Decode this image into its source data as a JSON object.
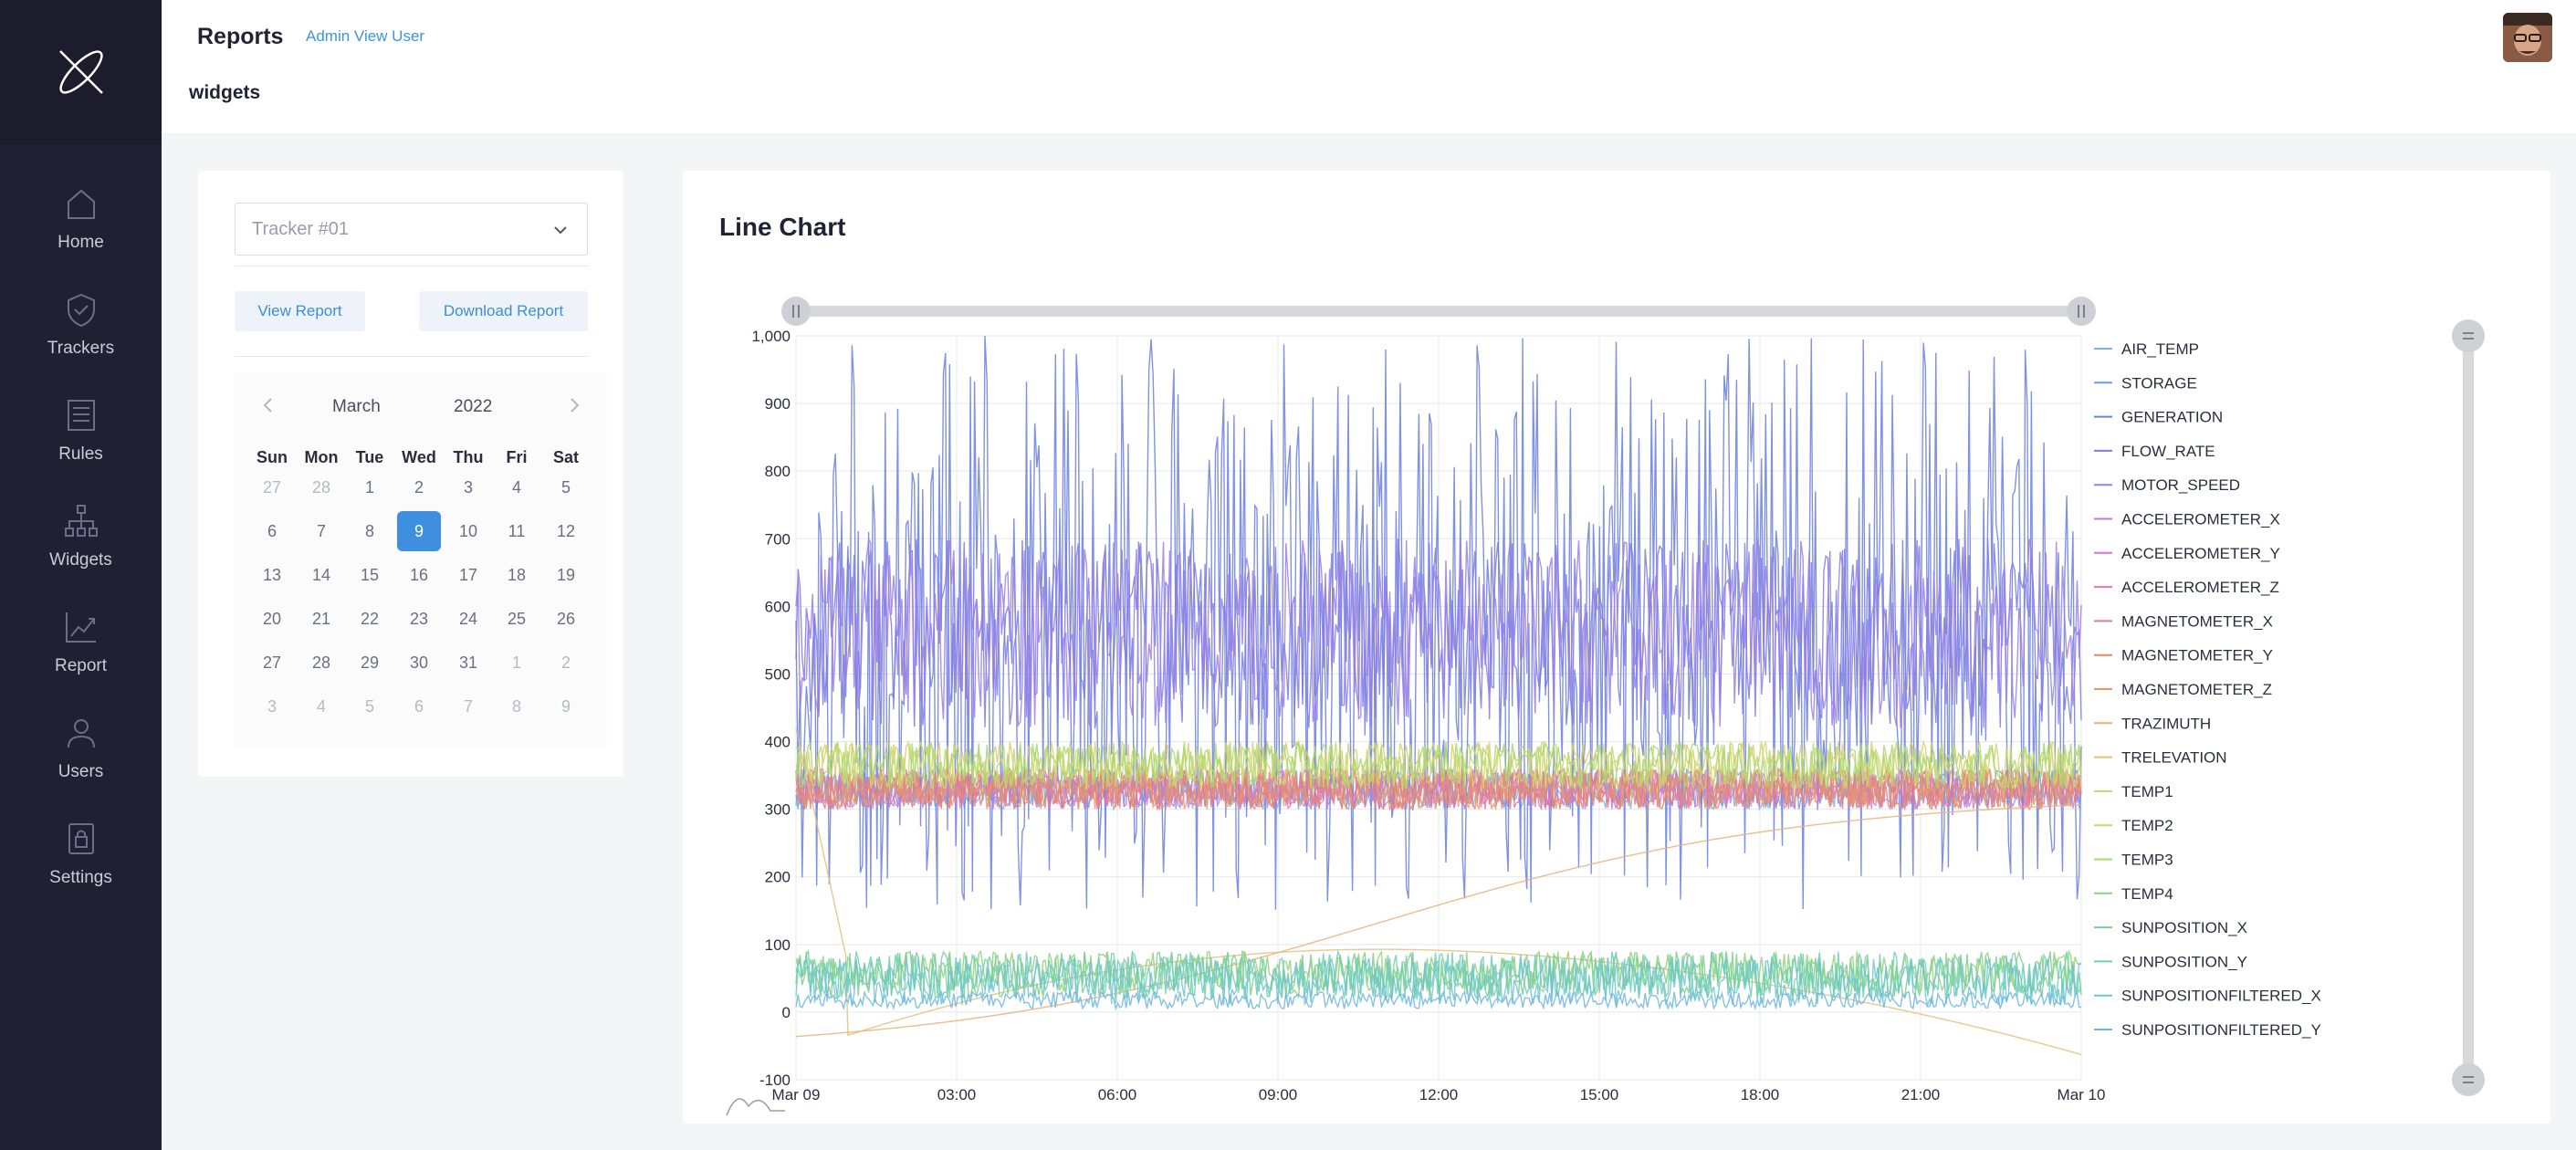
{
  "sidebar": {
    "items": [
      {
        "label": "Home",
        "icon": "home-icon"
      },
      {
        "label": "Trackers",
        "icon": "shield-check-icon"
      },
      {
        "label": "Rules",
        "icon": "list-icon"
      },
      {
        "label": "Widgets",
        "icon": "network-icon"
      },
      {
        "label": "Report",
        "icon": "chart-line-icon"
      },
      {
        "label": "Users",
        "icon": "user-icon"
      },
      {
        "label": "Settings",
        "icon": "lock-icon"
      }
    ]
  },
  "header": {
    "title": "Reports",
    "link": "Admin View User",
    "subtitle": "widgets"
  },
  "filters": {
    "tracker_select": "Tracker #01",
    "view_report": "View Report",
    "download_report": "Download Report"
  },
  "calendar": {
    "month": "March",
    "year": "2022",
    "weekdays": [
      "Sun",
      "Mon",
      "Tue",
      "Wed",
      "Thu",
      "Fri",
      "Sat"
    ],
    "selected_day": "9",
    "weeks": [
      [
        [
          "27",
          true
        ],
        [
          "28",
          true
        ],
        [
          "1",
          false
        ],
        [
          "2",
          false
        ],
        [
          "3",
          false
        ],
        [
          "4",
          false
        ],
        [
          "5",
          false
        ]
      ],
      [
        [
          "6",
          false
        ],
        [
          "7",
          false
        ],
        [
          "8",
          false
        ],
        [
          "9",
          false
        ],
        [
          "10",
          false
        ],
        [
          "11",
          false
        ],
        [
          "12",
          false
        ]
      ],
      [
        [
          "13",
          false
        ],
        [
          "14",
          false
        ],
        [
          "15",
          false
        ],
        [
          "16",
          false
        ],
        [
          "17",
          false
        ],
        [
          "18",
          false
        ],
        [
          "19",
          false
        ]
      ],
      [
        [
          "20",
          false
        ],
        [
          "21",
          false
        ],
        [
          "22",
          false
        ],
        [
          "23",
          false
        ],
        [
          "24",
          false
        ],
        [
          "25",
          false
        ],
        [
          "26",
          false
        ]
      ],
      [
        [
          "27",
          false
        ],
        [
          "28",
          false
        ],
        [
          "29",
          false
        ],
        [
          "30",
          false
        ],
        [
          "31",
          false
        ],
        [
          "1",
          true
        ],
        [
          "2",
          true
        ]
      ],
      [
        [
          "3",
          true
        ],
        [
          "4",
          true
        ],
        [
          "5",
          true
        ],
        [
          "6",
          true
        ],
        [
          "7",
          true
        ],
        [
          "8",
          true
        ],
        [
          "9",
          true
        ]
      ]
    ]
  },
  "chart_card": {
    "title": "Line Chart"
  },
  "chart_data": {
    "type": "line",
    "ylim": [
      -100,
      1000
    ],
    "y_ticks": [
      "1,000",
      "900",
      "800",
      "700",
      "600",
      "500",
      "400",
      "300",
      "200",
      "100",
      "0",
      "-100"
    ],
    "x_ticks": [
      "Mar 09",
      "03:00",
      "06:00",
      "09:00",
      "12:00",
      "15:00",
      "18:00",
      "21:00",
      "Mar 10"
    ],
    "grid": true,
    "legend_position": "right",
    "series": [
      {
        "name": "AIR_TEMP",
        "color": "#7fb3e6",
        "band": [
          300,
          350
        ]
      },
      {
        "name": "STORAGE",
        "color": "#6f9fe0",
        "band": [
          300,
          360
        ]
      },
      {
        "name": "GENERATION",
        "color": "#6b7fe0",
        "band": [
          150,
          1000
        ]
      },
      {
        "name": "FLOW_RATE",
        "color": "#7e7de3",
        "band": [
          420,
          700
        ]
      },
      {
        "name": "MOTOR_SPEED",
        "color": "#9b7fe6",
        "band": [
          420,
          700
        ]
      },
      {
        "name": "ACCELEROMETER_X",
        "color": "#b77ee0",
        "band": [
          300,
          360
        ]
      },
      {
        "name": "ACCELEROMETER_Y",
        "color": "#d27ac9",
        "band": [
          300,
          360
        ]
      },
      {
        "name": "ACCELEROMETER_Z",
        "color": "#e07aa6",
        "band": [
          300,
          360
        ]
      },
      {
        "name": "MAGNETOMETER_X",
        "color": "#e67a80",
        "band": [
          300,
          360
        ]
      },
      {
        "name": "MAGNETOMETER_Y",
        "color": "#e58a6e",
        "band": [
          300,
          360
        ]
      },
      {
        "name": "MAGNETOMETER_Z",
        "color": "#e59a6a",
        "band": [
          300,
          360
        ]
      },
      {
        "name": "TRAZIMUTH",
        "color": "#e8b27a",
        "trend": "rising"
      },
      {
        "name": "TRELEVATION",
        "color": "#e0c07a",
        "trend": "arc"
      },
      {
        "name": "TEMP1",
        "color": "#d8cf6a",
        "band": [
          330,
          400
        ]
      },
      {
        "name": "TEMP2",
        "color": "#c6d96a",
        "band": [
          330,
          400
        ]
      },
      {
        "name": "TEMP3",
        "color": "#a8d86a",
        "band": [
          330,
          400
        ]
      },
      {
        "name": "TEMP4",
        "color": "#8fd27a",
        "band": [
          30,
          90
        ]
      },
      {
        "name": "SUNPOSITION_X",
        "color": "#7ccf8e",
        "band": [
          20,
          90
        ]
      },
      {
        "name": "SUNPOSITION_Y",
        "color": "#6fcfb0",
        "band": [
          20,
          90
        ]
      },
      {
        "name": "SUNPOSITIONFILTERED_X",
        "color": "#6cc6cf",
        "band": [
          10,
          80
        ]
      },
      {
        "name": "SUNPOSITIONFILTERED_Y",
        "color": "#6fb6e0",
        "band": [
          5,
          30
        ]
      }
    ]
  }
}
